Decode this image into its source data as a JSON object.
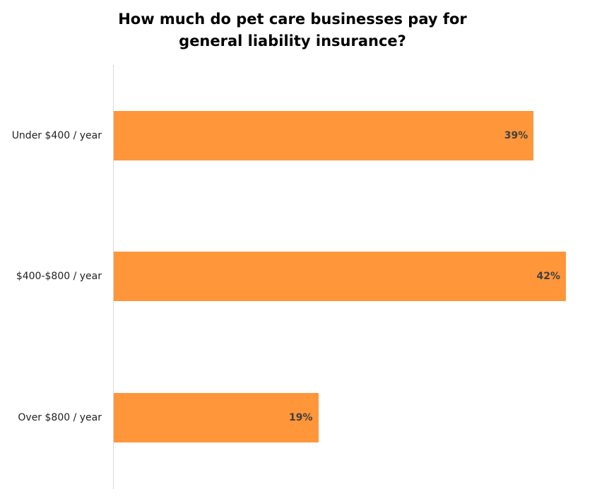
{
  "chart_data": {
    "type": "bar",
    "orientation": "horizontal",
    "title": "How much do pet care businesses pay for general liability insurance?",
    "title_lines": [
      "How much do pet care businesses pay for",
      "general liability insurance?"
    ],
    "categories": [
      "Under $400 / year",
      "$400-$800 / year",
      "Over $800 / year"
    ],
    "values": [
      39,
      42,
      19
    ],
    "data_labels": [
      "39%",
      "42%",
      "19%"
    ],
    "unit": "%",
    "xlim": [
      0,
      42
    ],
    "grid": false,
    "bar_color": "#FF963A"
  }
}
